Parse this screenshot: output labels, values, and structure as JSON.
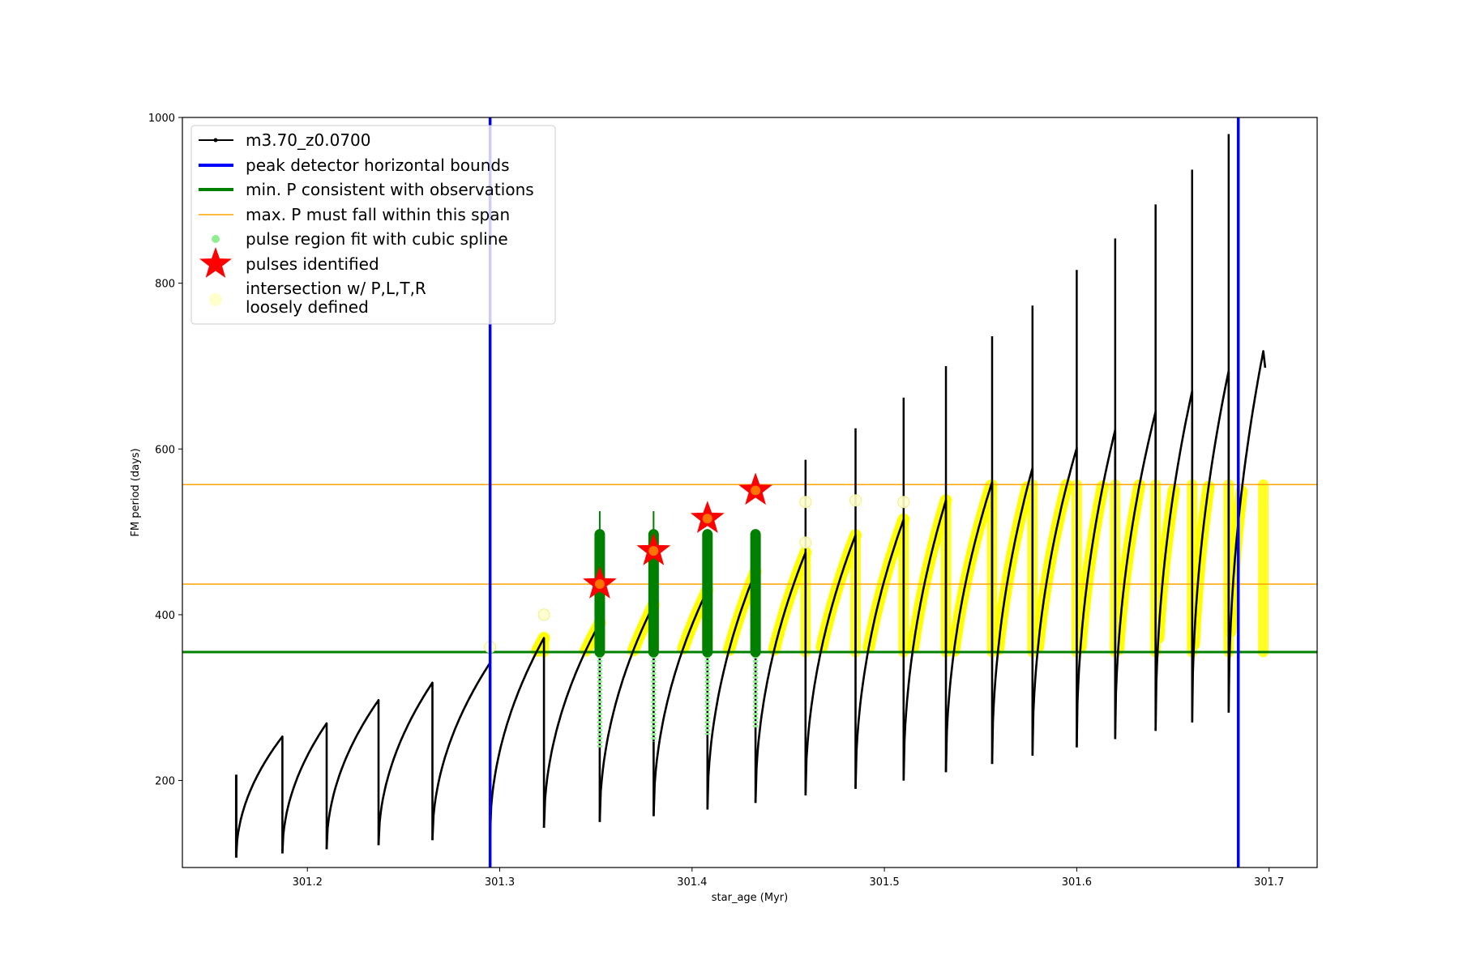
{
  "chart_data": {
    "type": "line",
    "xlabel": "star_age (Myr)",
    "ylabel": "FM period (days)",
    "xlim": [
      301.135,
      301.725
    ],
    "ylim": [
      95,
      1000
    ],
    "xticks": [
      301.2,
      301.3,
      301.4,
      301.5,
      301.6,
      301.7
    ],
    "yticks": [
      200,
      400,
      600,
      800,
      1000
    ],
    "xtick_labels": [
      "301.2",
      "301.3",
      "301.4",
      "301.5",
      "301.6",
      "301.7"
    ],
    "ytick_labels": [
      "200",
      "400",
      "600",
      "800",
      "1000"
    ],
    "legend_position": "upper-left",
    "colors": {
      "model": "#000000",
      "bounds": "#0000ff",
      "min_p": "#008000",
      "max_p": "#ffa500",
      "spline": "#90ee90",
      "pulse": "#ff0000",
      "yellow": "#ffff00",
      "loose": "#ffffcc"
    },
    "legend": [
      {
        "label": "m3.70_z0.0700",
        "kind": "line-dot",
        "color": "#000000"
      },
      {
        "label": "peak detector horizontal bounds",
        "kind": "thick-line",
        "color": "#0000ff"
      },
      {
        "label": "min. P consistent with observations",
        "kind": "thick-line",
        "color": "#008000"
      },
      {
        "label": "max. P must fall within this span",
        "kind": "thin-line",
        "color": "#ffa500"
      },
      {
        "label": "pulse region fit with cubic spline",
        "kind": "dot",
        "color": "#90ee90"
      },
      {
        "label": "pulses identified",
        "kind": "star",
        "color": "#ff0000"
      },
      {
        "label": "intersection w/ P,L,T,R",
        "kind": "circle",
        "color": "#ffffcc"
      },
      {
        "label": "loosely defined",
        "kind": "none",
        "color": "#ffffcc"
      }
    ],
    "vertical_bounds_x": [
      301.295,
      301.684
    ],
    "min_p_y": 355,
    "max_p_span": [
      437,
      557
    ],
    "cycles": [
      {
        "start": 301.163,
        "end": 301.187,
        "start_p": 107,
        "end_p": 253
      },
      {
        "start": 301.187,
        "end": 301.21,
        "start_p": 112,
        "end_p": 269
      },
      {
        "start": 301.21,
        "end": 301.237,
        "start_p": 117,
        "end_p": 297
      },
      {
        "start": 301.237,
        "end": 301.265,
        "start_p": 122,
        "end_p": 318
      },
      {
        "start": 301.265,
        "end": 301.295,
        "start_p": 128,
        "end_p": 342
      },
      {
        "start": 301.295,
        "end": 301.323,
        "start_p": 135,
        "end_p": 372
      },
      {
        "start": 301.323,
        "end": 301.352,
        "start_p": 143,
        "end_p": 390
      },
      {
        "start": 301.352,
        "end": 301.38,
        "start_p": 150,
        "end_p": 412
      },
      {
        "start": 301.38,
        "end": 301.408,
        "start_p": 157,
        "end_p": 430
      },
      {
        "start": 301.408,
        "end": 301.433,
        "start_p": 165,
        "end_p": 452
      },
      {
        "start": 301.433,
        "end": 301.459,
        "start_p": 173,
        "end_p": 475
      },
      {
        "start": 301.459,
        "end": 301.485,
        "start_p": 182,
        "end_p": 496
      },
      {
        "start": 301.485,
        "end": 301.51,
        "start_p": 190,
        "end_p": 515
      },
      {
        "start": 301.51,
        "end": 301.532,
        "start_p": 200,
        "end_p": 538
      },
      {
        "start": 301.532,
        "end": 301.556,
        "start_p": 210,
        "end_p": 560
      },
      {
        "start": 301.556,
        "end": 301.577,
        "start_p": 220,
        "end_p": 577
      },
      {
        "start": 301.577,
        "end": 301.6,
        "start_p": 230,
        "end_p": 601
      },
      {
        "start": 301.6,
        "end": 301.62,
        "start_p": 240,
        "end_p": 623
      },
      {
        "start": 301.62,
        "end": 301.641,
        "start_p": 250,
        "end_p": 645
      },
      {
        "start": 301.641,
        "end": 301.66,
        "start_p": 260,
        "end_p": 670
      },
      {
        "start": 301.66,
        "end": 301.679,
        "start_p": 270,
        "end_p": 694
      },
      {
        "start": 301.679,
        "end": 301.697,
        "start_p": 282,
        "end_p": 718
      }
    ],
    "spikes": [
      {
        "x": 301.459,
        "peak": 587
      },
      {
        "x": 301.485,
        "peak": 625
      },
      {
        "x": 301.51,
        "peak": 662
      },
      {
        "x": 301.532,
        "peak": 700
      },
      {
        "x": 301.556,
        "peak": 736
      },
      {
        "x": 301.577,
        "peak": 773
      },
      {
        "x": 301.6,
        "peak": 816
      },
      {
        "x": 301.62,
        "peak": 854
      },
      {
        "x": 301.641,
        "peak": 895
      },
      {
        "x": 301.66,
        "peak": 937
      },
      {
        "x": 301.679,
        "peak": 980
      }
    ],
    "green_bars": [
      {
        "x": 301.352,
        "top": 525,
        "bottom": 355
      },
      {
        "x": 301.38,
        "top": 525,
        "bottom": 355
      },
      {
        "x": 301.408,
        "top": 497,
        "bottom": 355
      },
      {
        "x": 301.433,
        "top": 497,
        "bottom": 355
      }
    ],
    "pulses_identified": [
      {
        "x": 301.352,
        "p": 437
      },
      {
        "x": 301.38,
        "p": 477
      },
      {
        "x": 301.408,
        "p": 516
      },
      {
        "x": 301.433,
        "p": 550
      }
    ],
    "loose_points": [
      {
        "x": 301.295,
        "p": 361
      },
      {
        "x": 301.323,
        "p": 400
      },
      {
        "x": 301.459,
        "p": 536
      },
      {
        "x": 301.459,
        "p": 487
      },
      {
        "x": 301.485,
        "p": 538
      },
      {
        "x": 301.51,
        "p": 536
      }
    ]
  }
}
